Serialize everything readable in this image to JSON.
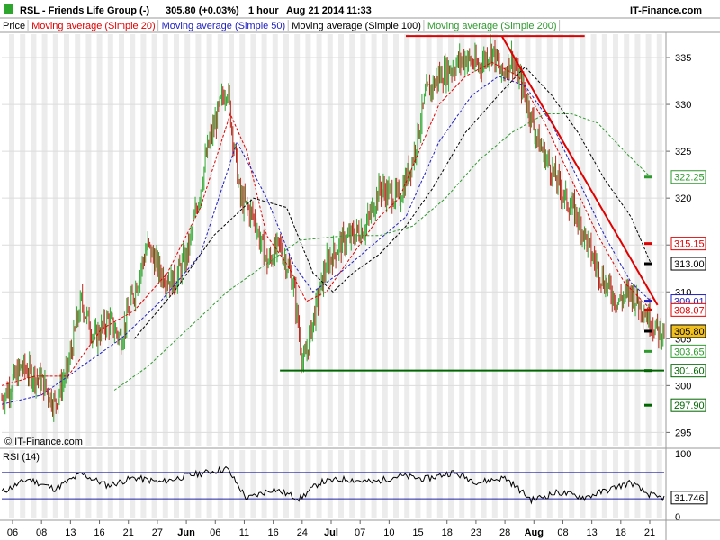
{
  "header": {
    "title": "RSL - Friends Life Group (-)",
    "price": "305.80 (+0.03%)",
    "interval": "1 hour",
    "datetime": "Aug 21 2014 11:33",
    "site": "IT-Finance.com"
  },
  "legend": [
    {
      "label": "Price",
      "color": "#000000"
    },
    {
      "label": "Moving average (Simple 20)",
      "color": "#e00000"
    },
    {
      "label": "Moving average (Simple 50)",
      "color": "#2020c0"
    },
    {
      "label": "Moving average (Simple 100)",
      "color": "#000000"
    },
    {
      "label": "Moving average (Simple 200)",
      "color": "#2e9a2e"
    }
  ],
  "watermark": "© IT-Finance.com",
  "rsi": {
    "title": "RSI (14)",
    "value": "31.746",
    "ticks": [
      "100",
      "0"
    ],
    "levels": [
      70,
      30
    ],
    "last": 31.746
  },
  "colors": {
    "up": "#2ea62e",
    "down": "#b8281a",
    "ma20": "#e00000",
    "ma50": "#2020c0",
    "ma100": "#000000",
    "ma200": "#2e9a2e",
    "resistance": "#e00000",
    "support": "#006600",
    "shade": "#ececec",
    "last_bg": "#f0c020"
  },
  "chart_data": {
    "type": "candlestick",
    "y_ticks": [
      "335",
      "330",
      "325",
      "320",
      "315",
      "310",
      "305",
      "300",
      "295"
    ],
    "ylim": [
      293.5,
      337.5
    ],
    "x_ticks": [
      "06",
      "08",
      "13",
      "16",
      "21",
      "27",
      "Jun",
      "06",
      "11",
      "16",
      "24",
      "Jul",
      "07",
      "10",
      "15",
      "18",
      "23",
      "28",
      "Aug",
      "08",
      "13",
      "18",
      "21"
    ],
    "price_labels": [
      {
        "value": 322.25,
        "text": "322.25",
        "color": "#2e9a2e"
      },
      {
        "value": 315.15,
        "text": "315.15",
        "color": "#e00000"
      },
      {
        "value": 313.0,
        "text": "313.00",
        "color": "#000000"
      },
      {
        "value": 309.01,
        "text": "309.01",
        "color": "#2020c0"
      },
      {
        "value": 308.07,
        "text": "308.07",
        "color": "#e00000"
      },
      {
        "value": 305.8,
        "text": "305.80",
        "color": "#000000"
      },
      {
        "value": 303.65,
        "text": "303.65",
        "color": "#2e9a2e"
      },
      {
        "value": 301.6,
        "text": "301.60",
        "color": "#006600"
      },
      {
        "value": 297.9,
        "text": "297.90",
        "color": "#006600"
      }
    ],
    "support_level": 301.6,
    "resistance_level": 337.3,
    "trendline": [
      {
        "x": 0.755,
        "y": 337.3
      },
      {
        "x": 0.99,
        "y": 308.6
      }
    ],
    "close_series": [
      {
        "x": 0.0,
        "y": 298.5
      },
      {
        "x": 0.03,
        "y": 302
      },
      {
        "x": 0.06,
        "y": 300.5
      },
      {
        "x": 0.08,
        "y": 298
      },
      {
        "x": 0.1,
        "y": 302
      },
      {
        "x": 0.12,
        "y": 309
      },
      {
        "x": 0.14,
        "y": 305
      },
      {
        "x": 0.16,
        "y": 307
      },
      {
        "x": 0.18,
        "y": 305
      },
      {
        "x": 0.2,
        "y": 310
      },
      {
        "x": 0.22,
        "y": 315
      },
      {
        "x": 0.24,
        "y": 312
      },
      {
        "x": 0.26,
        "y": 311
      },
      {
        "x": 0.28,
        "y": 314
      },
      {
        "x": 0.3,
        "y": 321
      },
      {
        "x": 0.31,
        "y": 325
      },
      {
        "x": 0.33,
        "y": 330
      },
      {
        "x": 0.34,
        "y": 332
      },
      {
        "x": 0.36,
        "y": 320
      },
      {
        "x": 0.38,
        "y": 318
      },
      {
        "x": 0.4,
        "y": 313
      },
      {
        "x": 0.42,
        "y": 315
      },
      {
        "x": 0.44,
        "y": 311
      },
      {
        "x": 0.455,
        "y": 302
      },
      {
        "x": 0.47,
        "y": 307
      },
      {
        "x": 0.49,
        "y": 313
      },
      {
        "x": 0.51,
        "y": 315
      },
      {
        "x": 0.53,
        "y": 316
      },
      {
        "x": 0.55,
        "y": 317
      },
      {
        "x": 0.57,
        "y": 321
      },
      {
        "x": 0.6,
        "y": 320
      },
      {
        "x": 0.62,
        "y": 324
      },
      {
        "x": 0.64,
        "y": 331
      },
      {
        "x": 0.66,
        "y": 333
      },
      {
        "x": 0.68,
        "y": 334
      },
      {
        "x": 0.7,
        "y": 335
      },
      {
        "x": 0.72,
        "y": 334
      },
      {
        "x": 0.74,
        "y": 336
      },
      {
        "x": 0.755,
        "y": 333
      },
      {
        "x": 0.77,
        "y": 335
      },
      {
        "x": 0.79,
        "y": 331
      },
      {
        "x": 0.81,
        "y": 326
      },
      {
        "x": 0.83,
        "y": 323
      },
      {
        "x": 0.85,
        "y": 320
      },
      {
        "x": 0.87,
        "y": 318
      },
      {
        "x": 0.89,
        "y": 314
      },
      {
        "x": 0.91,
        "y": 311
      },
      {
        "x": 0.93,
        "y": 309
      },
      {
        "x": 0.95,
        "y": 310
      },
      {
        "x": 0.97,
        "y": 308
      },
      {
        "x": 0.99,
        "y": 305.8
      }
    ],
    "ma20": [
      {
        "x": 0.0,
        "y": 300
      },
      {
        "x": 0.05,
        "y": 301
      },
      {
        "x": 0.1,
        "y": 301
      },
      {
        "x": 0.15,
        "y": 306
      },
      {
        "x": 0.2,
        "y": 308
      },
      {
        "x": 0.25,
        "y": 312
      },
      {
        "x": 0.3,
        "y": 319
      },
      {
        "x": 0.345,
        "y": 329
      },
      {
        "x": 0.37,
        "y": 325
      },
      {
        "x": 0.4,
        "y": 316
      },
      {
        "x": 0.43,
        "y": 313
      },
      {
        "x": 0.46,
        "y": 309
      },
      {
        "x": 0.49,
        "y": 310
      },
      {
        "x": 0.53,
        "y": 314
      },
      {
        "x": 0.57,
        "y": 318
      },
      {
        "x": 0.6,
        "y": 320
      },
      {
        "x": 0.63,
        "y": 325
      },
      {
        "x": 0.66,
        "y": 330
      },
      {
        "x": 0.7,
        "y": 333
      },
      {
        "x": 0.74,
        "y": 334.5
      },
      {
        "x": 0.78,
        "y": 333
      },
      {
        "x": 0.82,
        "y": 328
      },
      {
        "x": 0.86,
        "y": 322
      },
      {
        "x": 0.9,
        "y": 316
      },
      {
        "x": 0.94,
        "y": 311
      },
      {
        "x": 0.98,
        "y": 308.1
      }
    ],
    "ma50": [
      {
        "x": 0.0,
        "y": 298
      },
      {
        "x": 0.06,
        "y": 299
      },
      {
        "x": 0.12,
        "y": 302
      },
      {
        "x": 0.18,
        "y": 305
      },
      {
        "x": 0.24,
        "y": 309
      },
      {
        "x": 0.3,
        "y": 314
      },
      {
        "x": 0.355,
        "y": 326
      },
      {
        "x": 0.4,
        "y": 320
      },
      {
        "x": 0.44,
        "y": 313
      },
      {
        "x": 0.47,
        "y": 310
      },
      {
        "x": 0.51,
        "y": 312
      },
      {
        "x": 0.56,
        "y": 315
      },
      {
        "x": 0.61,
        "y": 318
      },
      {
        "x": 0.66,
        "y": 326
      },
      {
        "x": 0.71,
        "y": 331
      },
      {
        "x": 0.75,
        "y": 333
      },
      {
        "x": 0.79,
        "y": 332
      },
      {
        "x": 0.83,
        "y": 328
      },
      {
        "x": 0.87,
        "y": 322
      },
      {
        "x": 0.91,
        "y": 316
      },
      {
        "x": 0.95,
        "y": 311
      },
      {
        "x": 0.98,
        "y": 309
      }
    ],
    "ma100": [
      {
        "x": 0.2,
        "y": 305
      },
      {
        "x": 0.26,
        "y": 310
      },
      {
        "x": 0.32,
        "y": 316
      },
      {
        "x": 0.38,
        "y": 320
      },
      {
        "x": 0.43,
        "y": 319
      },
      {
        "x": 0.47,
        "y": 312
      },
      {
        "x": 0.5,
        "y": 310
      },
      {
        "x": 0.53,
        "y": 312
      },
      {
        "x": 0.57,
        "y": 314
      },
      {
        "x": 0.61,
        "y": 317
      },
      {
        "x": 0.65,
        "y": 321
      },
      {
        "x": 0.7,
        "y": 327
      },
      {
        "x": 0.75,
        "y": 331
      },
      {
        "x": 0.79,
        "y": 334
      },
      {
        "x": 0.83,
        "y": 331
      },
      {
        "x": 0.87,
        "y": 327
      },
      {
        "x": 0.91,
        "y": 322
      },
      {
        "x": 0.95,
        "y": 318
      },
      {
        "x": 0.98,
        "y": 313
      }
    ],
    "ma200": [
      {
        "x": 0.17,
        "y": 299.5
      },
      {
        "x": 0.22,
        "y": 302
      },
      {
        "x": 0.28,
        "y": 306
      },
      {
        "x": 0.34,
        "y": 310
      },
      {
        "x": 0.4,
        "y": 313
      },
      {
        "x": 0.45,
        "y": 315.5
      },
      {
        "x": 0.52,
        "y": 316
      },
      {
        "x": 0.57,
        "y": 316
      },
      {
        "x": 0.62,
        "y": 317
      },
      {
        "x": 0.67,
        "y": 320
      },
      {
        "x": 0.72,
        "y": 324
      },
      {
        "x": 0.77,
        "y": 327
      },
      {
        "x": 0.82,
        "y": 329
      },
      {
        "x": 0.86,
        "y": 329
      },
      {
        "x": 0.9,
        "y": 328
      },
      {
        "x": 0.94,
        "y": 325
      },
      {
        "x": 0.98,
        "y": 322.2
      }
    ],
    "rsi_series": [
      {
        "x": 0.0,
        "y": 40
      },
      {
        "x": 0.04,
        "y": 60
      },
      {
        "x": 0.08,
        "y": 45
      },
      {
        "x": 0.12,
        "y": 68
      },
      {
        "x": 0.16,
        "y": 50
      },
      {
        "x": 0.2,
        "y": 62
      },
      {
        "x": 0.24,
        "y": 55
      },
      {
        "x": 0.28,
        "y": 65
      },
      {
        "x": 0.32,
        "y": 72
      },
      {
        "x": 0.34,
        "y": 76
      },
      {
        "x": 0.37,
        "y": 30
      },
      {
        "x": 0.41,
        "y": 45
      },
      {
        "x": 0.45,
        "y": 30
      },
      {
        "x": 0.48,
        "y": 55
      },
      {
        "x": 0.52,
        "y": 60
      },
      {
        "x": 0.56,
        "y": 55
      },
      {
        "x": 0.6,
        "y": 65
      },
      {
        "x": 0.64,
        "y": 60
      },
      {
        "x": 0.68,
        "y": 70
      },
      {
        "x": 0.72,
        "y": 55
      },
      {
        "x": 0.76,
        "y": 62
      },
      {
        "x": 0.8,
        "y": 28
      },
      {
        "x": 0.84,
        "y": 40
      },
      {
        "x": 0.88,
        "y": 32
      },
      {
        "x": 0.92,
        "y": 45
      },
      {
        "x": 0.95,
        "y": 55
      },
      {
        "x": 0.97,
        "y": 40
      },
      {
        "x": 0.99,
        "y": 31.7
      }
    ]
  }
}
